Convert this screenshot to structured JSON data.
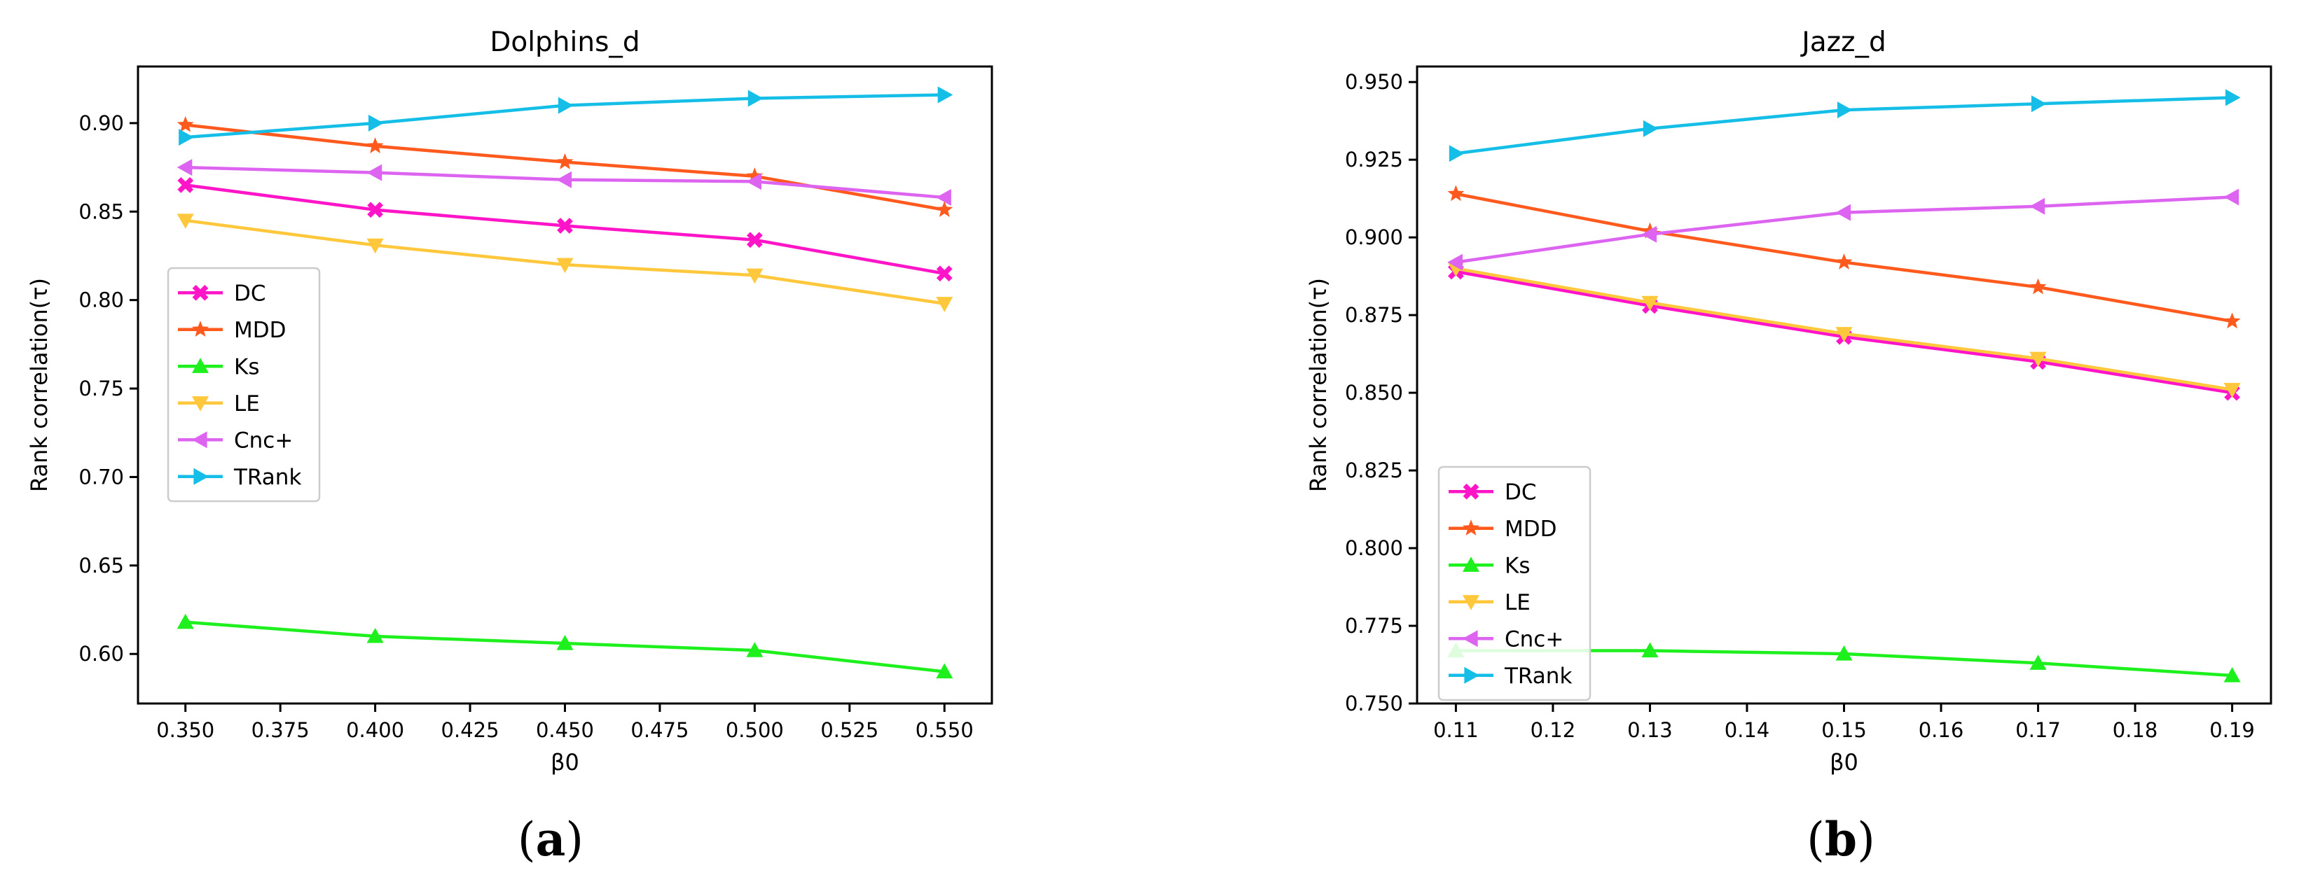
{
  "chart_data": [
    {
      "type": "line",
      "title": "Dolphins_d",
      "xlabel": "β0",
      "ylabel": "Rank correlation(τ)",
      "x": [
        0.35,
        0.4,
        0.45,
        0.5,
        0.55
      ],
      "xlim": [
        0.3375,
        0.5625
      ],
      "ylim": [
        0.572,
        0.932
      ],
      "xticks": [
        0.35,
        0.375,
        0.4,
        0.425,
        0.45,
        0.475,
        0.5,
        0.525,
        0.55
      ],
      "xtick_labels": [
        "0.350",
        "0.375",
        "0.400",
        "0.425",
        "0.450",
        "0.475",
        "0.500",
        "0.525",
        "0.550"
      ],
      "yticks": [
        0.6,
        0.65,
        0.7,
        0.75,
        0.8,
        0.85,
        0.9
      ],
      "ytick_labels": [
        "0.60",
        "0.65",
        "0.70",
        "0.75",
        "0.80",
        "0.85",
        "0.90"
      ],
      "legend_position": "center-left",
      "panel_label": {
        "open": "(",
        "letter": "a",
        "close": ")"
      },
      "series": [
        {
          "name": "DC",
          "color": "#ff14c8",
          "marker": "X",
          "values": [
            0.865,
            0.851,
            0.842,
            0.834,
            0.815
          ]
        },
        {
          "name": "MDD",
          "color": "#ff5a1e",
          "marker": "star",
          "values": [
            0.899,
            0.887,
            0.878,
            0.87,
            0.851
          ]
        },
        {
          "name": "Ks",
          "color": "#1ef01e",
          "marker": "triangle-up",
          "values": [
            0.618,
            0.61,
            0.606,
            0.602,
            0.59
          ]
        },
        {
          "name": "LE",
          "color": "#ffc83c",
          "marker": "triangle-down",
          "values": [
            0.845,
            0.831,
            0.82,
            0.814,
            0.798
          ]
        },
        {
          "name": "Cnc+",
          "color": "#dc64f0",
          "marker": "triangle-left",
          "values": [
            0.875,
            0.872,
            0.868,
            0.867,
            0.858
          ]
        },
        {
          "name": "TRank",
          "color": "#14bee6",
          "marker": "triangle-right",
          "values": [
            0.892,
            0.9,
            0.91,
            0.914,
            0.916
          ]
        }
      ]
    },
    {
      "type": "line",
      "title": "Jazz_d",
      "xlabel": "β0",
      "ylabel": "Rank correlation(τ)",
      "x": [
        0.11,
        0.13,
        0.15,
        0.17,
        0.19
      ],
      "xlim": [
        0.106,
        0.194
      ],
      "ylim": [
        0.75,
        0.955
      ],
      "xticks": [
        0.11,
        0.12,
        0.13,
        0.14,
        0.15,
        0.16,
        0.17,
        0.18,
        0.19
      ],
      "xtick_labels": [
        "0.11",
        "0.12",
        "0.13",
        "0.14",
        "0.15",
        "0.16",
        "0.17",
        "0.18",
        "0.19"
      ],
      "yticks": [
        0.75,
        0.775,
        0.8,
        0.825,
        0.85,
        0.875,
        0.9,
        0.925,
        0.95
      ],
      "ytick_labels": [
        "0.750",
        "0.775",
        "0.800",
        "0.825",
        "0.850",
        "0.875",
        "0.900",
        "0.925",
        "0.950"
      ],
      "legend_position": "lower-left",
      "panel_label": {
        "open": "(",
        "letter": "b",
        "close": ")"
      },
      "series": [
        {
          "name": "DC",
          "color": "#ff14c8",
          "marker": "X",
          "values": [
            0.889,
            0.878,
            0.868,
            0.86,
            0.85
          ]
        },
        {
          "name": "MDD",
          "color": "#ff5a1e",
          "marker": "star",
          "values": [
            0.914,
            0.902,
            0.892,
            0.884,
            0.873
          ]
        },
        {
          "name": "Ks",
          "color": "#1ef01e",
          "marker": "triangle-up",
          "values": [
            0.767,
            0.767,
            0.766,
            0.763,
            0.759
          ]
        },
        {
          "name": "LE",
          "color": "#ffc83c",
          "marker": "triangle-down",
          "values": [
            0.89,
            0.879,
            0.869,
            0.861,
            0.851
          ]
        },
        {
          "name": "Cnc+",
          "color": "#dc64f0",
          "marker": "triangle-left",
          "values": [
            0.892,
            0.901,
            0.908,
            0.91,
            0.913
          ]
        },
        {
          "name": "TRank",
          "color": "#14bee6",
          "marker": "triangle-right",
          "values": [
            0.927,
            0.935,
            0.941,
            0.943,
            0.945
          ]
        }
      ]
    }
  ]
}
